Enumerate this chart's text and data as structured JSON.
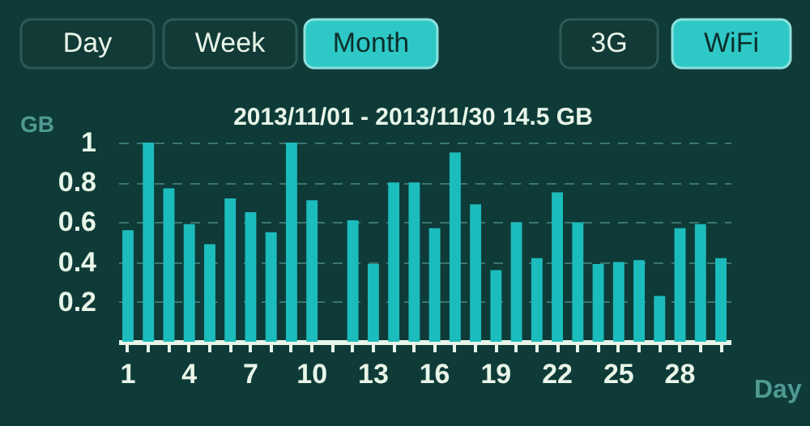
{
  "chart_data": {
    "type": "bar",
    "title": "2013/11/01 - 2013/11/30   14.5 GB",
    "xlabel": "Day",
    "ylabel": "GB",
    "categories": [
      "1",
      null,
      null,
      "4",
      null,
      null,
      "7",
      null,
      null,
      "10",
      null,
      null,
      "13",
      null,
      null,
      "16",
      null,
      null,
      "19",
      null,
      null,
      "22",
      null,
      null,
      "25",
      null,
      null,
      "28",
      null,
      null
    ],
    "values": [
      0.56,
      1.0,
      0.77,
      0.59,
      0.49,
      0.72,
      0.65,
      0.55,
      1.0,
      0.71,
      null,
      0.61,
      0.39,
      0.8,
      0.8,
      0.57,
      0.95,
      0.69,
      0.36,
      0.6,
      0.42,
      0.75,
      0.6,
      0.39,
      0.4,
      0.41,
      0.23,
      0.57,
      0.59,
      0.42
    ],
    "color": "#1cbcbc",
    "ylim": [
      0,
      1
    ],
    "yticks": [
      0.2,
      0.4,
      0.6,
      0.8,
      1
    ],
    "grid": "y",
    "annotations": [
      "Day",
      "Week",
      "Month",
      "3G",
      "WiFi"
    ]
  }
}
